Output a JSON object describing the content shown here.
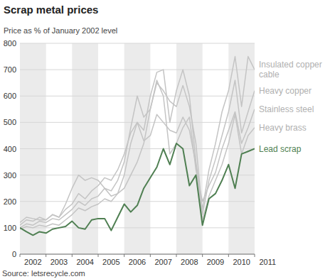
{
  "chart_data": {
    "type": "line",
    "title": "Scrap metal prices",
    "subtitle": "Price as % of January 2002 level",
    "source": "Source: letsrecycle.com",
    "x": [
      2002,
      2002.25,
      2002.5,
      2002.75,
      2003,
      2003.25,
      2003.5,
      2003.75,
      2004,
      2004.25,
      2004.5,
      2004.75,
      2005,
      2005.25,
      2005.5,
      2005.75,
      2006,
      2006.25,
      2006.5,
      2006.75,
      2007,
      2007.25,
      2007.5,
      2007.75,
      2008,
      2008.25,
      2008.5,
      2008.75,
      2009,
      2009.25,
      2009.5,
      2009.75,
      2010,
      2010.25,
      2010.5,
      2010.75,
      2011
    ],
    "xlim": [
      2002,
      2011
    ],
    "xticks": [
      2002,
      2003,
      2004,
      2005,
      2006,
      2007,
      2008,
      2009,
      2010,
      2011
    ],
    "ylim": [
      0,
      800
    ],
    "yticks": [
      0,
      100,
      200,
      300,
      400,
      500,
      600,
      700,
      800
    ],
    "grid": true,
    "series": [
      {
        "name": "Insulated copper cable",
        "color": "#c4c4c4",
        "values": [
          110,
          130,
          125,
          140,
          130,
          150,
          140,
          170,
          190,
          230,
          210,
          240,
          260,
          290,
          280,
          320,
          380,
          460,
          500,
          470,
          600,
          690,
          700,
          500,
          620,
          700,
          600,
          350,
          170,
          320,
          420,
          540,
          620,
          750,
          560,
          750,
          700
        ]
      },
      {
        "name": "Heavy copper",
        "color": "#c4c4c4",
        "values": [
          100,
          115,
          110,
          125,
          120,
          135,
          130,
          150,
          170,
          200,
          185,
          210,
          220,
          250,
          240,
          280,
          350,
          480,
          600,
          520,
          550,
          650,
          620,
          580,
          560,
          640,
          560,
          420,
          150,
          280,
          360,
          450,
          540,
          660,
          460,
          540,
          620
        ]
      },
      {
        "name": "Stainless steel",
        "color": "#c4c4c4",
        "values": [
          120,
          140,
          135,
          130,
          130,
          150,
          140,
          190,
          250,
          300,
          280,
          290,
          280,
          250,
          220,
          230,
          250,
          300,
          350,
          420,
          550,
          660,
          600,
          380,
          420,
          480,
          520,
          320,
          200,
          260,
          310,
          400,
          470,
          540,
          420,
          480,
          550
        ]
      },
      {
        "name": "Heavy brass",
        "color": "#c4c4c4",
        "values": [
          95,
          105,
          100,
          110,
          105,
          115,
          110,
          130,
          150,
          175,
          165,
          180,
          190,
          210,
          200,
          230,
          300,
          420,
          500,
          430,
          450,
          530,
          500,
          470,
          460,
          520,
          470,
          340,
          130,
          220,
          280,
          340,
          420,
          530,
          380,
          450,
          480
        ]
      },
      {
        "name": "Lead scrap",
        "color": "#4f7f52",
        "values": [
          100,
          85,
          72,
          85,
          80,
          95,
          100,
          105,
          125,
          100,
          95,
          130,
          135,
          135,
          90,
          140,
          190,
          160,
          185,
          250,
          290,
          330,
          400,
          340,
          420,
          400,
          260,
          300,
          110,
          210,
          230,
          280,
          340,
          250,
          380,
          390,
          400
        ]
      }
    ]
  }
}
